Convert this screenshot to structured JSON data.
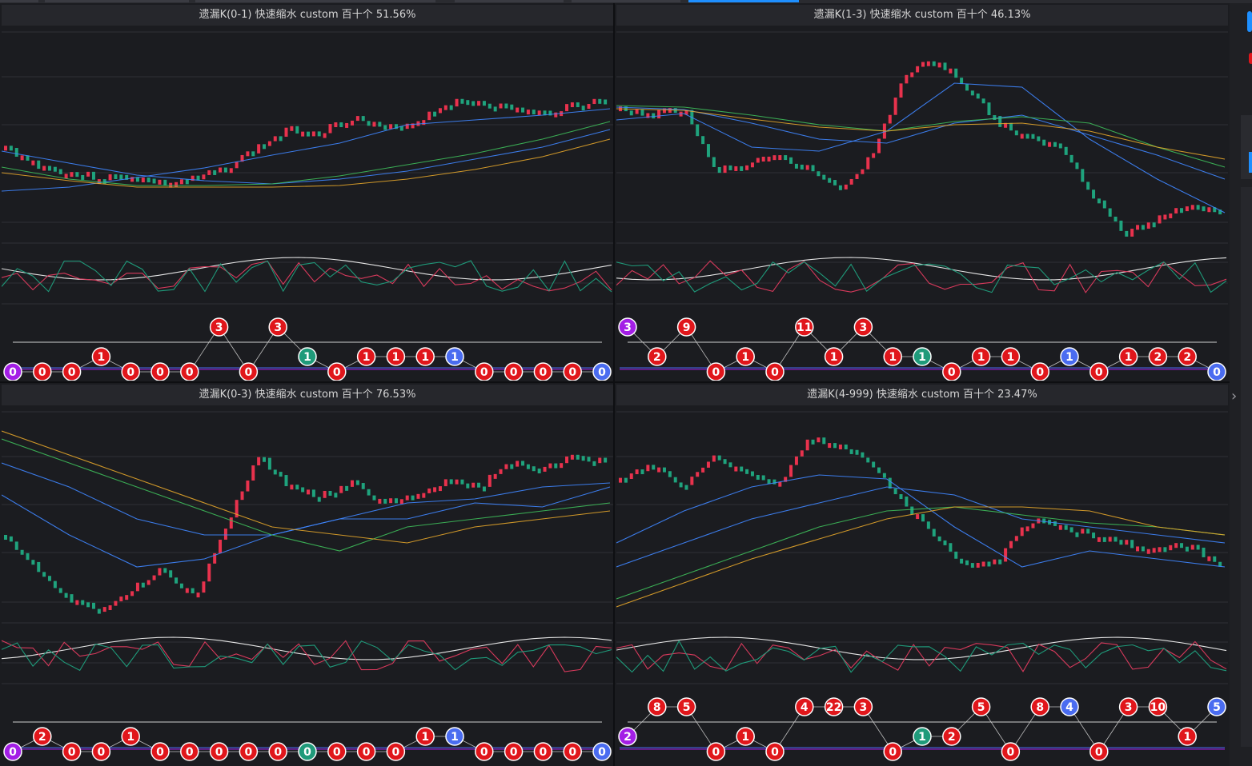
{
  "colors": {
    "background": "#1b1c20",
    "up_candle": "#e8324d",
    "down_candle": "#1fa37d",
    "ma_blue": "#3f86ff",
    "ma_green": "#3ebc5a",
    "ma_yellow": "#e3a52a",
    "osc_white": "#e6e6e6",
    "osc_red": "#d83a5c",
    "osc_green": "#1f9a7a",
    "badge_red": "#e0161b",
    "badge_teal": "#1f9a7a",
    "badge_blue": "#4a6cf0",
    "badge_purple": "#a31ee6"
  },
  "window": {
    "right_panel_icons": [
      "chevron-right-icon"
    ]
  },
  "panels": [
    {
      "title": "遗漏K(0-1)  快速缩水  custom  百十个  51.56%",
      "badges": [
        "0",
        "0",
        "0",
        "1",
        "0",
        "0",
        "0",
        "3",
        "0",
        "3",
        "1",
        "0",
        "1",
        "1",
        "1",
        "1",
        "0",
        "0",
        "0",
        "0",
        "0"
      ],
      "badge_colors": [
        "purple",
        "red",
        "red",
        "red",
        "red",
        "red",
        "red",
        "red",
        "red",
        "red",
        "teal",
        "red",
        "red",
        "red",
        "red",
        "blue",
        "red",
        "red",
        "red",
        "red",
        "blue"
      ]
    },
    {
      "title": "遗漏K(1-3)  快速缩水  custom  百十个  46.13%",
      "badges": [
        "3",
        "2",
        "9",
        "0",
        "1",
        "0",
        "11",
        "1",
        "3",
        "1",
        "1",
        "0",
        "1",
        "1",
        "0",
        "1",
        "0",
        "1",
        "2",
        "2",
        "0"
      ],
      "badge_colors": [
        "purple",
        "red",
        "red",
        "red",
        "red",
        "red",
        "red",
        "red",
        "red",
        "red",
        "teal",
        "red",
        "red",
        "red",
        "red",
        "blue",
        "red",
        "red",
        "red",
        "red",
        "blue"
      ]
    },
    {
      "title": "遗漏K(0-3)  快速缩水  custom  百十个  76.53%",
      "badges": [
        "0",
        "2",
        "0",
        "0",
        "1",
        "0",
        "0",
        "0",
        "0",
        "0",
        "0",
        "0",
        "0",
        "0",
        "1",
        "1",
        "0",
        "0",
        "0",
        "0",
        "0"
      ],
      "badge_colors": [
        "purple",
        "red",
        "red",
        "red",
        "red",
        "red",
        "red",
        "red",
        "red",
        "red",
        "teal",
        "red",
        "red",
        "red",
        "red",
        "blue",
        "red",
        "red",
        "red",
        "red",
        "blue"
      ]
    },
    {
      "title": "遗漏K(4-999)  快速缩水  custom  百十个  23.47%",
      "badges": [
        "2",
        "8",
        "5",
        "0",
        "1",
        "0",
        "4",
        "22",
        "3",
        "0",
        "1",
        "2",
        "5",
        "0",
        "8",
        "4",
        "0",
        "3",
        "10",
        "1",
        "5"
      ],
      "badge_colors": [
        "purple",
        "red",
        "red",
        "red",
        "red",
        "red",
        "red",
        "red",
        "red",
        "red",
        "teal",
        "red",
        "red",
        "red",
        "red",
        "blue",
        "red",
        "red",
        "red",
        "red",
        "blue"
      ]
    }
  ]
}
